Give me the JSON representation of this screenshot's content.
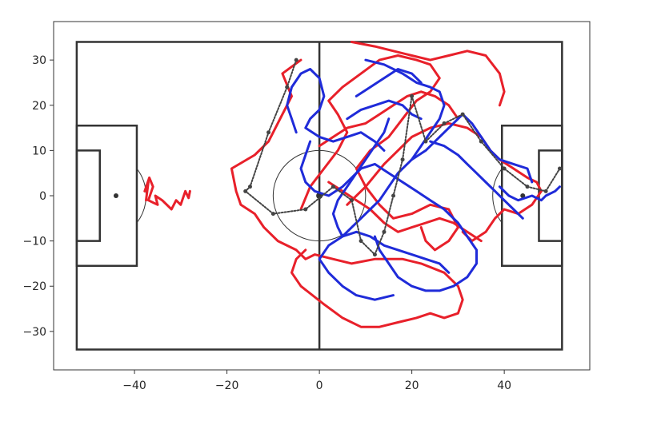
{
  "chart_data": {
    "type": "line",
    "title": "",
    "xlabel": "",
    "ylabel": "",
    "xlim": [
      -57.5,
      58.5
    ],
    "ylim": [
      -38.5,
      38.5
    ],
    "x_ticks": [
      -40,
      -20,
      0,
      20,
      40
    ],
    "y_ticks": [
      30,
      20,
      10,
      0,
      -10,
      -20,
      -30
    ],
    "x_tick_labels": [
      "−40",
      "−20",
      "0",
      "20",
      "40"
    ],
    "y_tick_labels": [
      "30",
      "20",
      "10",
      "0",
      "−10",
      "−20",
      "−30"
    ],
    "grid": false,
    "legend": null,
    "colors": {
      "team_a": "#e8202a",
      "team_b": "#1f2bd9",
      "ball": "#444444",
      "pitch": "#333333"
    },
    "pitch": {
      "x_range": [
        -52.5,
        52.5
      ],
      "y_range": [
        -34,
        34
      ]
    },
    "series": [
      {
        "color": "#e8202a",
        "points": [
          [
            -37.5,
            -1
          ],
          [
            -37,
            3
          ],
          [
            -37.8,
            1
          ],
          [
            -36.8,
            4
          ],
          [
            -36,
            2
          ],
          [
            -37,
            -1
          ],
          [
            -35,
            -2
          ],
          [
            -35.5,
            0
          ],
          [
            -34,
            -1
          ],
          [
            -32,
            -3
          ],
          [
            -31,
            -1
          ],
          [
            -30,
            -2
          ],
          [
            -29,
            1
          ],
          [
            -28.3,
            -0.5
          ],
          [
            -28,
            1
          ]
        ]
      },
      {
        "color": "#e8202a",
        "points": [
          [
            -4,
            30
          ],
          [
            -8,
            27
          ],
          [
            -6,
            22
          ],
          [
            -9,
            16
          ],
          [
            -11,
            12
          ],
          [
            -14,
            9
          ],
          [
            -19,
            6
          ],
          [
            -18,
            1
          ],
          [
            -17,
            -2
          ],
          [
            -14,
            -4
          ],
          [
            -12,
            -7
          ],
          [
            -9,
            -10
          ],
          [
            -5,
            -12
          ],
          [
            -3,
            -14
          ],
          [
            -1,
            -13
          ],
          [
            3,
            -14
          ],
          [
            7,
            -15
          ],
          [
            12,
            -14
          ],
          [
            18,
            -14
          ],
          [
            22,
            -15
          ],
          [
            27,
            -17
          ],
          [
            30,
            -20
          ],
          [
            31,
            -23
          ],
          [
            30,
            -26
          ],
          [
            27,
            -27
          ],
          [
            24,
            -26
          ],
          [
            21,
            -27
          ],
          [
            17,
            -28
          ],
          [
            13,
            -29
          ],
          [
            9,
            -29
          ],
          [
            5,
            -27
          ],
          [
            1,
            -24
          ],
          [
            -4,
            -20
          ],
          [
            -6,
            -17
          ],
          [
            -5,
            -14
          ],
          [
            -3,
            -12
          ]
        ]
      },
      {
        "color": "#e8202a",
        "points": [
          [
            -4,
            -3
          ],
          [
            -2,
            2
          ],
          [
            1,
            6
          ],
          [
            4,
            10
          ],
          [
            6,
            14
          ],
          [
            4,
            18
          ],
          [
            2,
            21
          ],
          [
            5,
            24
          ],
          [
            9,
            27
          ],
          [
            13,
            30
          ],
          [
            17,
            31
          ],
          [
            21,
            30
          ],
          [
            24,
            29
          ],
          [
            26,
            26
          ],
          [
            24,
            23
          ],
          [
            21,
            21
          ],
          [
            18,
            17
          ],
          [
            15,
            13
          ],
          [
            11,
            10
          ],
          [
            8,
            6
          ],
          [
            10,
            2
          ],
          [
            13,
            -2
          ],
          [
            16,
            -5
          ],
          [
            20,
            -4
          ],
          [
            24,
            -2
          ],
          [
            28,
            -3
          ],
          [
            30,
            -7
          ],
          [
            28,
            -10
          ],
          [
            25,
            -12
          ],
          [
            23,
            -10
          ],
          [
            22,
            -7
          ]
        ]
      },
      {
        "color": "#e8202a",
        "points": [
          [
            7,
            34
          ],
          [
            12,
            33
          ],
          [
            16,
            32
          ],
          [
            20,
            31
          ],
          [
            24,
            30
          ],
          [
            28,
            31
          ],
          [
            32,
            32
          ],
          [
            36,
            31
          ],
          [
            39,
            27
          ],
          [
            40,
            23
          ],
          [
            39,
            20
          ]
        ]
      },
      {
        "color": "#e8202a",
        "points": [
          [
            6,
            -2
          ],
          [
            10,
            2
          ],
          [
            14,
            7
          ],
          [
            17,
            10
          ],
          [
            20,
            13
          ],
          [
            24,
            15
          ],
          [
            28,
            16
          ],
          [
            32,
            15
          ],
          [
            35,
            13
          ],
          [
            37,
            10
          ],
          [
            39,
            8
          ],
          [
            42,
            6
          ],
          [
            45,
            4
          ],
          [
            47,
            3
          ],
          [
            48,
            1
          ],
          [
            46,
            -2
          ],
          [
            43,
            -4
          ],
          [
            40,
            -3
          ],
          [
            38,
            -5
          ],
          [
            36,
            -8
          ],
          [
            33,
            -10
          ],
          [
            31,
            -8
          ]
        ]
      },
      {
        "color": "#e8202a",
        "points": [
          [
            0,
            11
          ],
          [
            3,
            13
          ],
          [
            6,
            15
          ],
          [
            10,
            16
          ],
          [
            13,
            18
          ],
          [
            16,
            20
          ],
          [
            19,
            22
          ],
          [
            22,
            23
          ],
          [
            25,
            22
          ],
          [
            28,
            20
          ],
          [
            30,
            17
          ]
        ]
      },
      {
        "color": "#e8202a",
        "points": [
          [
            2,
            3
          ],
          [
            5,
            1
          ],
          [
            8,
            -1
          ],
          [
            11,
            -3
          ],
          [
            14,
            -6
          ],
          [
            17,
            -8
          ],
          [
            20,
            -7
          ],
          [
            23,
            -6
          ],
          [
            26,
            -5
          ],
          [
            29,
            -6
          ],
          [
            32,
            -8
          ],
          [
            35,
            -10
          ]
        ]
      },
      {
        "color": "#1f2bd9",
        "points": [
          [
            10,
            30
          ],
          [
            14,
            29
          ],
          [
            18,
            27
          ],
          [
            21,
            25
          ],
          [
            24,
            24
          ],
          [
            26,
            23
          ],
          [
            27,
            20
          ],
          [
            26,
            17
          ],
          [
            24,
            14
          ],
          [
            22,
            11
          ],
          [
            20,
            8
          ],
          [
            17,
            5
          ],
          [
            15,
            2
          ],
          [
            13,
            -1
          ],
          [
            11,
            -3
          ],
          [
            9,
            -5
          ],
          [
            7,
            -7
          ],
          [
            5,
            -9
          ],
          [
            4,
            -7
          ],
          [
            3,
            -4
          ],
          [
            4,
            -1
          ],
          [
            6,
            2
          ],
          [
            8,
            5
          ],
          [
            10,
            8
          ],
          [
            12,
            11
          ],
          [
            14,
            14
          ],
          [
            15,
            17
          ]
        ]
      },
      {
        "color": "#1f2bd9",
        "points": [
          [
            -5,
            14
          ],
          [
            -6,
            17
          ],
          [
            -7,
            20
          ],
          [
            -6,
            24
          ],
          [
            -4,
            27
          ],
          [
            -2,
            28
          ],
          [
            0,
            26
          ],
          [
            1,
            22
          ],
          [
            0,
            19
          ],
          [
            -2,
            17
          ],
          [
            -3,
            15
          ],
          [
            0,
            13
          ],
          [
            3,
            12
          ],
          [
            6,
            13
          ],
          [
            9,
            14
          ],
          [
            12,
            12
          ],
          [
            14,
            10
          ]
        ]
      },
      {
        "color": "#1f2bd9",
        "points": [
          [
            -2,
            12
          ],
          [
            -3,
            9
          ],
          [
            -4,
            6
          ],
          [
            -3,
            3
          ],
          [
            -1,
            1
          ],
          [
            2,
            0
          ],
          [
            5,
            2
          ],
          [
            7,
            4
          ],
          [
            9,
            6
          ],
          [
            12,
            7
          ],
          [
            15,
            5
          ],
          [
            18,
            3
          ],
          [
            21,
            1
          ],
          [
            24,
            -1
          ],
          [
            27,
            -3
          ],
          [
            30,
            -6
          ],
          [
            32,
            -9
          ],
          [
            34,
            -12
          ],
          [
            34,
            -15
          ],
          [
            32,
            -18
          ],
          [
            29,
            -20
          ],
          [
            26,
            -21
          ],
          [
            23,
            -21
          ],
          [
            20,
            -20
          ],
          [
            17,
            -18
          ],
          [
            15,
            -15
          ],
          [
            13,
            -12
          ],
          [
            12,
            -9
          ]
        ]
      },
      {
        "color": "#1f2bd9",
        "points": [
          [
            16,
            -22
          ],
          [
            12,
            -23
          ],
          [
            8,
            -22
          ],
          [
            5,
            -20
          ],
          [
            2,
            -17
          ],
          [
            0,
            -14
          ],
          [
            2,
            -11
          ],
          [
            5,
            -9
          ],
          [
            8,
            -8
          ],
          [
            11,
            -9
          ],
          [
            14,
            -11
          ],
          [
            17,
            -12
          ],
          [
            20,
            -13
          ],
          [
            23,
            -14
          ],
          [
            26,
            -15
          ],
          [
            28,
            -17
          ]
        ]
      },
      {
        "color": "#1f2bd9",
        "points": [
          [
            20,
            8
          ],
          [
            23,
            10
          ],
          [
            26,
            13
          ],
          [
            29,
            16
          ],
          [
            31,
            18
          ],
          [
            33,
            16
          ],
          [
            35,
            13
          ],
          [
            37,
            10
          ],
          [
            39,
            8
          ],
          [
            42,
            7
          ],
          [
            45,
            6
          ],
          [
            46,
            3
          ]
        ]
      },
      {
        "color": "#1f2bd9",
        "points": [
          [
            39,
            2
          ],
          [
            41,
            0
          ],
          [
            43,
            -1
          ],
          [
            46,
            0
          ],
          [
            48,
            -1
          ],
          [
            49,
            0
          ],
          [
            51,
            1
          ],
          [
            52,
            2
          ]
        ]
      },
      {
        "color": "#1f2bd9",
        "points": [
          [
            8,
            22
          ],
          [
            11,
            24
          ],
          [
            14,
            26
          ],
          [
            17,
            28
          ],
          [
            20,
            27
          ],
          [
            22,
            25
          ]
        ]
      },
      {
        "color": "#1f2bd9",
        "points": [
          [
            24,
            12
          ],
          [
            27,
            11
          ],
          [
            30,
            9
          ],
          [
            32,
            7
          ],
          [
            34,
            5
          ],
          [
            36,
            3
          ],
          [
            38,
            1
          ],
          [
            40,
            -1
          ],
          [
            42,
            -3
          ],
          [
            44,
            -5
          ]
        ]
      },
      {
        "color": "#1f2bd9",
        "points": [
          [
            6,
            17
          ],
          [
            9,
            19
          ],
          [
            12,
            20
          ],
          [
            15,
            21
          ],
          [
            18,
            20
          ],
          [
            20,
            18
          ],
          [
            22,
            17
          ]
        ]
      },
      {
        "color": "#444444",
        "dashed": true,
        "points": [
          [
            -5,
            30
          ],
          [
            -7,
            24
          ],
          [
            -11,
            14
          ],
          [
            -15,
            2
          ],
          [
            -16,
            1
          ],
          [
            -10,
            -4
          ],
          [
            -3,
            -3
          ],
          [
            3,
            2
          ],
          [
            7,
            -1
          ],
          [
            9,
            -10
          ],
          [
            12,
            -13
          ],
          [
            14,
            -8
          ],
          [
            16,
            0
          ],
          [
            18,
            8
          ],
          [
            20,
            22
          ],
          [
            23,
            12
          ],
          [
            27,
            16
          ],
          [
            31,
            18
          ],
          [
            35,
            12
          ],
          [
            40,
            6
          ],
          [
            45,
            2
          ],
          [
            49,
            1
          ],
          [
            52,
            6
          ]
        ]
      }
    ]
  }
}
